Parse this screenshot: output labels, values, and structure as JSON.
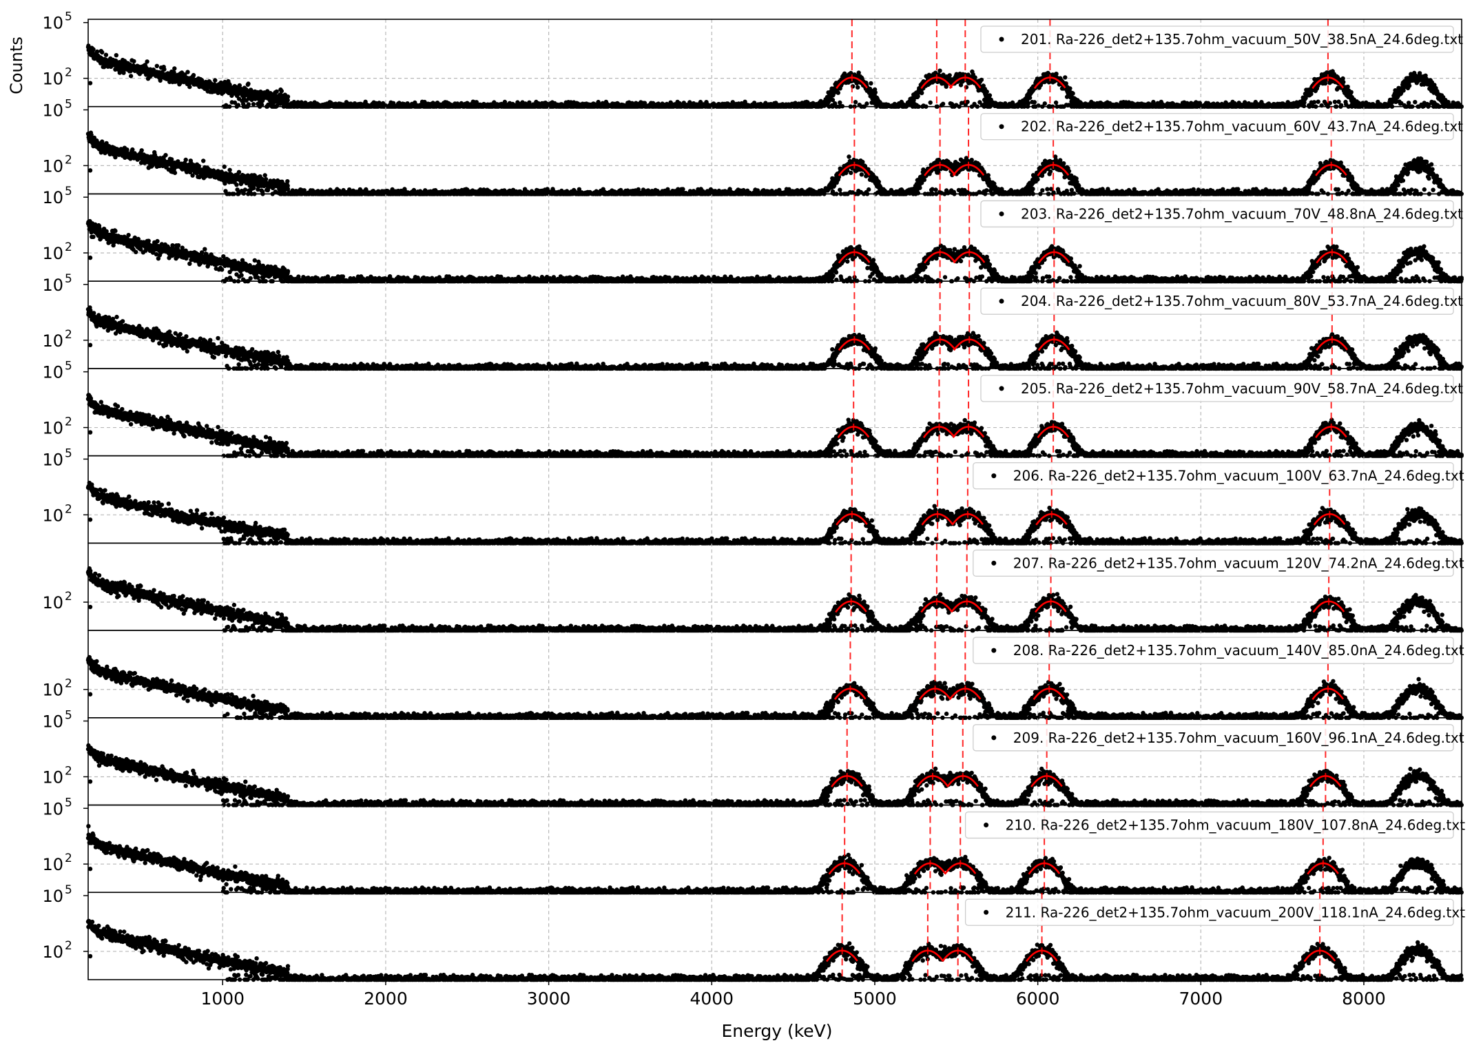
{
  "chart_data": {
    "type": "scatter",
    "ylabel": "Counts",
    "xlabel": "Energy (keV)",
    "xlim": [
      175,
      8600
    ],
    "x_ticks": [
      1000,
      2000,
      3000,
      4000,
      5000,
      6000,
      7000,
      8000
    ],
    "y_scale": "log",
    "ylim": [
      3,
      150000
    ],
    "y_tick_labels": [
      "10^5",
      "10^2"
    ],
    "grid": true,
    "legend_position": "top-right",
    "fit_line_color": "#ff0000",
    "marker_color": "#000000",
    "series": [
      {
        "name": "201. Ra-226_det2+135.7ohm_vacuum_50V_38.5nA_24.6deg.txt",
        "peaks_keV": [
          4860,
          5380,
          5555,
          6075,
          7780,
          8330
        ],
        "fit_lines_keV": [
          4860,
          5380,
          5555,
          6075,
          7780
        ],
        "peak_counts": 110
      },
      {
        "name": "202. Ra-226_det2+135.7ohm_vacuum_60V_43.7nA_24.6deg.txt",
        "peaks_keV": [
          4875,
          5400,
          5575,
          6095,
          7800,
          8330
        ],
        "fit_lines_keV": [
          4875,
          5400,
          5575,
          6095,
          7800
        ],
        "peak_counts": 110
      },
      {
        "name": "203. Ra-226_det2+135.7ohm_vacuum_70V_48.8nA_24.6deg.txt",
        "peaks_keV": [
          4875,
          5400,
          5580,
          6100,
          7805,
          8330
        ],
        "fit_lines_keV": [
          4875,
          5400,
          5580,
          6100,
          7805
        ],
        "peak_counts": 110
      },
      {
        "name": "204. Ra-226_det2+135.7ohm_vacuum_80V_53.7nA_24.6deg.txt",
        "peaks_keV": [
          4875,
          5400,
          5580,
          6100,
          7805,
          8330
        ],
        "fit_lines_keV": [
          4875,
          5400,
          5580,
          6100,
          7805
        ],
        "peak_counts": 110
      },
      {
        "name": "205. Ra-226_det2+135.7ohm_vacuum_90V_58.7nA_24.6deg.txt",
        "peaks_keV": [
          4870,
          5395,
          5575,
          6095,
          7800,
          8330
        ],
        "fit_lines_keV": [
          4870,
          5395,
          5575,
          6095,
          7800
        ],
        "peak_counts": 110
      },
      {
        "name": "206. Ra-226_det2+135.7ohm_vacuum_100V_63.7nA_24.6deg.txt",
        "peaks_keV": [
          4860,
          5385,
          5570,
          6085,
          7790,
          8330
        ],
        "fit_lines_keV": [
          4860,
          5385,
          5570,
          6085,
          7790
        ],
        "peak_counts": 110
      },
      {
        "name": "207. Ra-226_det2+135.7ohm_vacuum_120V_74.2nA_24.6deg.txt",
        "peaks_keV": [
          4855,
          5380,
          5565,
          6080,
          7785,
          8330
        ],
        "fit_lines_keV": [
          4855,
          5380,
          5565,
          6080,
          7785
        ],
        "peak_counts": 110
      },
      {
        "name": "208. Ra-226_det2+135.7ohm_vacuum_140V_85.0nA_24.6deg.txt",
        "peaks_keV": [
          4850,
          5370,
          5555,
          6070,
          7780,
          8330
        ],
        "fit_lines_keV": [
          4850,
          5370,
          5555,
          6070,
          7780
        ],
        "peak_counts": 110
      },
      {
        "name": "209. Ra-226_det2+135.7ohm_vacuum_160V_96.1nA_24.6deg.txt",
        "peaks_keV": [
          4830,
          5355,
          5540,
          6055,
          7765,
          8330
        ],
        "fit_lines_keV": [
          4830,
          5355,
          5540,
          6055,
          7765
        ],
        "peak_counts": 110
      },
      {
        "name": "210. Ra-226_det2+135.7ohm_vacuum_180V_107.8nA_24.6deg.txt",
        "peaks_keV": [
          4815,
          5340,
          5525,
          6040,
          7750,
          8330
        ],
        "fit_lines_keV": [
          4815,
          5340,
          5525,
          6040,
          7750
        ],
        "peak_counts": 110
      },
      {
        "name": "211. Ra-226_det2+135.7ohm_vacuum_200V_118.1nA_24.6deg.txt",
        "peaks_keV": [
          4800,
          5325,
          5510,
          6025,
          7730,
          8330
        ],
        "fit_lines_keV": [
          4800,
          5325,
          5510,
          6025,
          7730
        ],
        "peak_counts": 110
      }
    ]
  }
}
